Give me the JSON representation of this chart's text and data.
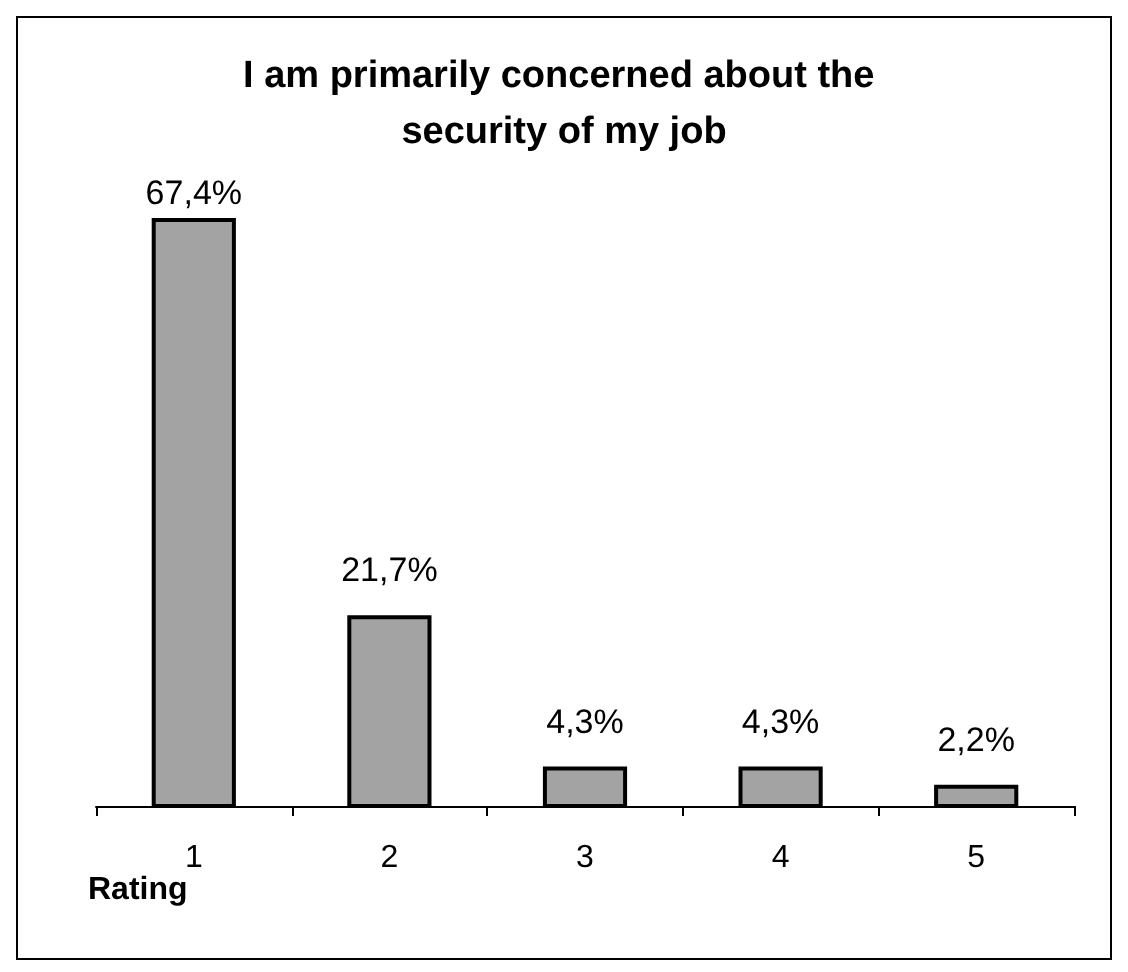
{
  "chart_data": {
    "type": "bar",
    "title": "I am primarily concerned about the security of my job",
    "xlabel": "Rating",
    "categories": [
      "1",
      "2",
      "3",
      "4",
      "5"
    ],
    "values": [
      67.4,
      21.7,
      4.3,
      4.3,
      2.2
    ],
    "value_labels": [
      "67,4%",
      "21,7%",
      "4,3%",
      "4,3%",
      "2,2%"
    ],
    "color": "#a3a3a3"
  }
}
